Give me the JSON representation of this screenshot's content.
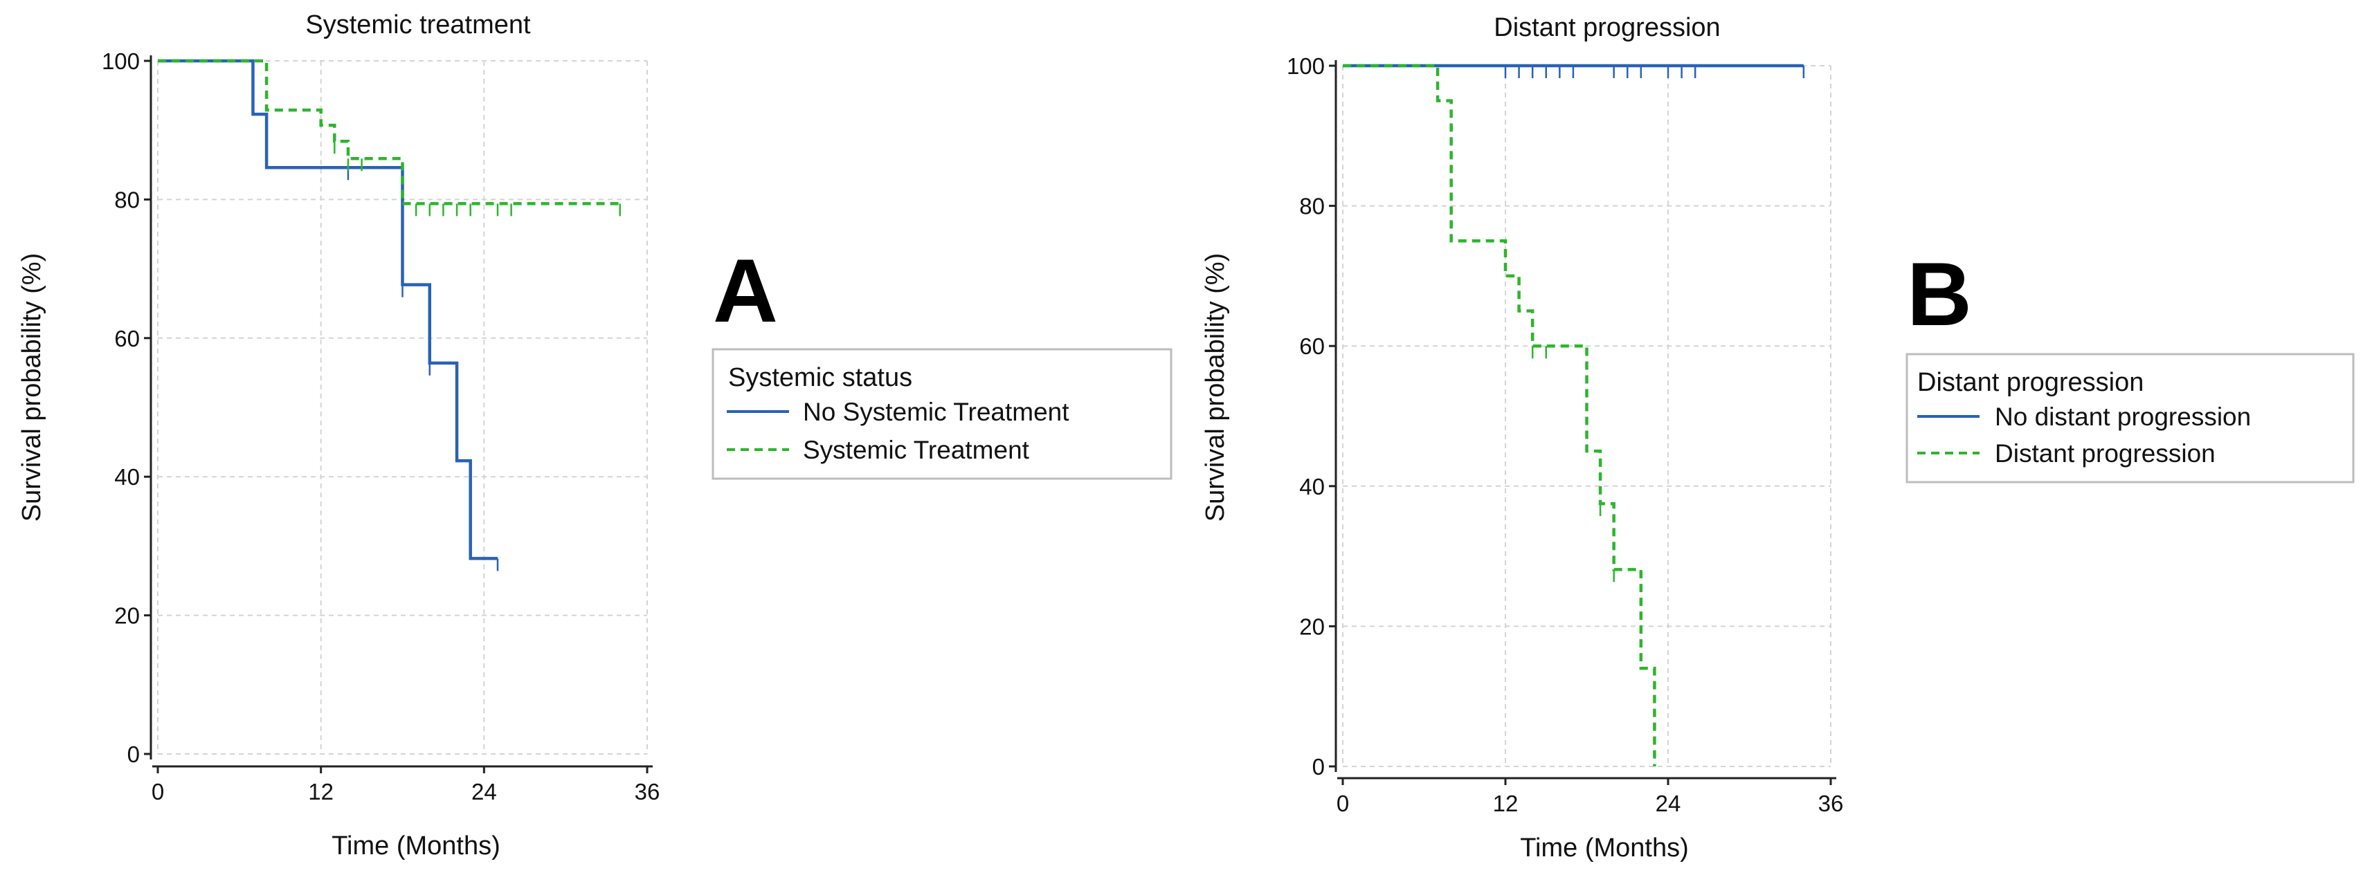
{
  "chart_data": [
    {
      "type": "line",
      "subtype": "kaplan-meier",
      "panel_label": "A",
      "title": "Systemic treatment",
      "xlabel": "Time (Months)",
      "ylabel": "Survival probability (%)",
      "xlim": [
        0,
        36
      ],
      "ylim": [
        0,
        100
      ],
      "xticks": [
        "0",
        "12",
        "24",
        "36"
      ],
      "xtick_values": [
        0,
        12,
        24,
        36
      ],
      "yticks": [
        "0",
        "20",
        "40",
        "60",
        "80",
        "100"
      ],
      "ytick_values": [
        0,
        20,
        40,
        60,
        80,
        100
      ],
      "grid": true,
      "legend": {
        "title": "Systemic status",
        "placement": "right",
        "entries": [
          "No Systemic Treatment",
          "Systemic Treatment"
        ]
      },
      "series": [
        {
          "name": "No Systemic Treatment",
          "color": "#2a62b5",
          "style": "solid",
          "steps": [
            [
              0,
              100
            ],
            [
              7,
              92.3
            ],
            [
              8,
              84.6
            ],
            [
              18,
              67.7
            ],
            [
              20,
              56.4
            ],
            [
              22,
              42.3
            ],
            [
              23,
              28.2
            ],
            [
              25,
              28.2
            ]
          ],
          "censored": [
            [
              14,
              84.6
            ],
            [
              18,
              67.7
            ],
            [
              20,
              56.4
            ],
            [
              25,
              28.2
            ]
          ]
        },
        {
          "name": "Systemic Treatment",
          "color": "#2db52d",
          "style": "dashed",
          "steps": [
            [
              0,
              100
            ],
            [
              8,
              92.9
            ],
            [
              12,
              90.7
            ],
            [
              13,
              88.4
            ],
            [
              14,
              85.9
            ],
            [
              18,
              79.4
            ],
            [
              34,
              79.4
            ]
          ],
          "censored": [
            [
              13,
              88.4
            ],
            [
              14,
              85.9
            ],
            [
              15,
              85.9
            ],
            [
              19,
              79.4
            ],
            [
              20,
              79.4
            ],
            [
              21,
              79.4
            ],
            [
              22,
              79.4
            ],
            [
              23,
              79.4
            ],
            [
              25,
              79.4
            ],
            [
              26,
              79.4
            ],
            [
              34,
              79.4
            ]
          ]
        }
      ]
    },
    {
      "type": "line",
      "subtype": "kaplan-meier",
      "panel_label": "B",
      "title": "Distant progression",
      "xlabel": "Time (Months)",
      "ylabel": "Survival probability (%)",
      "xlim": [
        0,
        36
      ],
      "ylim": [
        0,
        100
      ],
      "xticks": [
        "0",
        "12",
        "24",
        "36"
      ],
      "xtick_values": [
        0,
        12,
        24,
        36
      ],
      "yticks": [
        "0",
        "20",
        "40",
        "60",
        "80",
        "100"
      ],
      "ytick_values": [
        0,
        20,
        40,
        60,
        80,
        100
      ],
      "grid": true,
      "legend": {
        "title": "Distant progression",
        "placement": "right",
        "entries": [
          "No distant progression",
          "Distant progression"
        ]
      },
      "series": [
        {
          "name": "No distant progression",
          "color": "#2a62b5",
          "style": "solid",
          "steps": [
            [
              0,
              100
            ],
            [
              34,
              100
            ]
          ],
          "censored": [
            [
              12,
              100
            ],
            [
              13,
              100
            ],
            [
              14,
              100
            ],
            [
              15,
              100
            ],
            [
              16,
              100
            ],
            [
              17,
              100
            ],
            [
              20,
              100
            ],
            [
              21,
              100
            ],
            [
              22,
              100
            ],
            [
              24,
              100
            ],
            [
              25,
              100
            ],
            [
              26,
              100
            ],
            [
              34,
              100
            ]
          ]
        },
        {
          "name": "Distant progression",
          "color": "#2db52d",
          "style": "dashed",
          "steps": [
            [
              0,
              100
            ],
            [
              7,
              95
            ],
            [
              8,
              75
            ],
            [
              12,
              70
            ],
            [
              13,
              65
            ],
            [
              14,
              60
            ],
            [
              18,
              45
            ],
            [
              19,
              37.5
            ],
            [
              20,
              28.1
            ],
            [
              22,
              14
            ],
            [
              23,
              0
            ]
          ],
          "censored": [
            [
              14,
              60
            ],
            [
              15,
              60
            ],
            [
              19,
              37.5
            ],
            [
              20,
              28.1
            ]
          ]
        }
      ]
    }
  ]
}
